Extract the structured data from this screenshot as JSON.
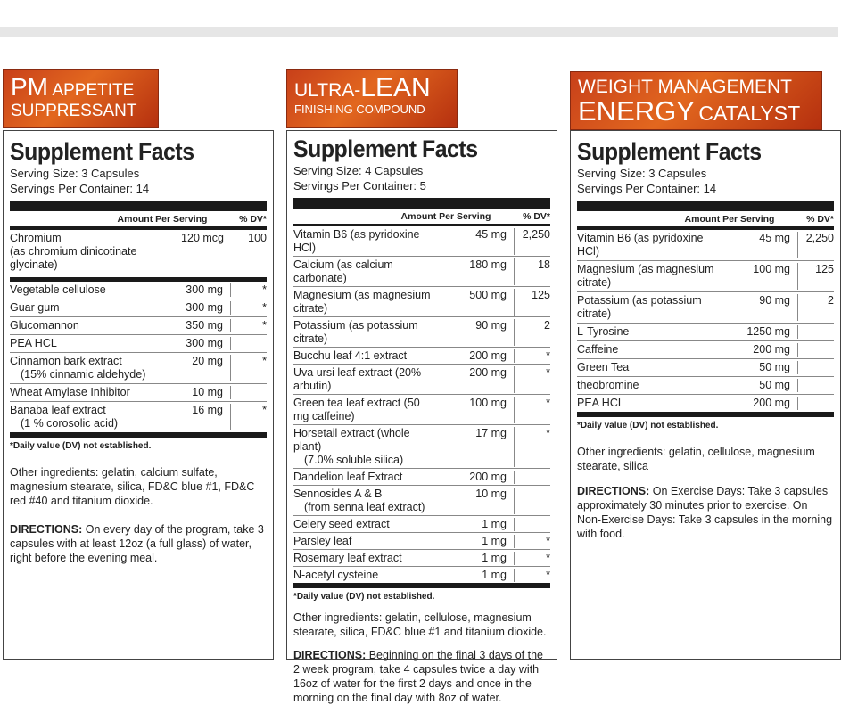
{
  "panels": [
    {
      "banner_line1_big": "PM",
      "banner_line1_small": "APPETITE",
      "banner_line2": "SUPPRESSANT",
      "title": "Supplement Facts",
      "serving_size": "Serving Size: 3 Capsules",
      "servings_per_container": "Servings Per Container: 14",
      "col_amount": "Amount Per Serving",
      "col_dv": "% DV*",
      "rows": [
        {
          "name": "Chromium",
          "sub": "(as chromium dinicotinate glycinate)",
          "amount": "120 mcg",
          "dv": "100"
        },
        {
          "name": "Vegetable cellulose",
          "sub": "",
          "amount": "300 mg",
          "dv": "*"
        },
        {
          "name": "Guar gum",
          "sub": "",
          "amount": "300 mg",
          "dv": "*"
        },
        {
          "name": "Glucomannon",
          "sub": "",
          "amount": "350 mg",
          "dv": "*"
        },
        {
          "name": "PEA HCL",
          "sub": "",
          "amount": "300 mg",
          "dv": ""
        },
        {
          "name": "Cinnamon bark extract",
          "sub": "(15% cinnamic aldehyde)",
          "amount": "20 mg",
          "dv": "*"
        },
        {
          "name": "Wheat Amylase Inhibitor",
          "sub": "",
          "amount": "10 mg",
          "dv": ""
        },
        {
          "name": "Banaba leaf extract",
          "sub": "(1 % corosolic acid)",
          "amount": "16 mg",
          "dv": "*"
        }
      ],
      "footnote": "*Daily value (DV) not established.",
      "other": "Other ingredients: gelatin, calcium sulfate, magnesium stearate, silica, FD&C blue #1, FD&C red #40 and titanium dioxide.",
      "directions_label": "DIRECTIONS:",
      "directions": " On every day of the program, take 3 capsules with at least 12oz (a full glass) of water, right before the evening meal."
    },
    {
      "banner_line1_small": "ULTRA-",
      "banner_line1_big": "LEAN",
      "banner_line2": "FINISHING COMPOUND",
      "title": "Supplement Facts",
      "serving_size": "Serving Size: 4 Capsules",
      "servings_per_container": "Servings Per Container: 5",
      "col_amount": "Amount Per Serving",
      "col_dv": "% DV*",
      "rows": [
        {
          "name": "Vitamin B6 (as pyridoxine HCl)",
          "sub": "",
          "amount": "45 mg",
          "dv": "2,250"
        },
        {
          "name": "Calcium (as calcium carbonate)",
          "sub": "",
          "amount": "180 mg",
          "dv": "18"
        },
        {
          "name": "Magnesium (as magnesium citrate)",
          "sub": "",
          "amount": "500 mg",
          "dv": "125"
        },
        {
          "name": "Potassium (as potassium citrate)",
          "sub": "",
          "amount": "90 mg",
          "dv": "2"
        },
        {
          "name": "Bucchu leaf 4:1 extract",
          "sub": "",
          "amount": "200 mg",
          "dv": "*"
        },
        {
          "name": "Uva ursi leaf extract (20% arbutin)",
          "sub": "",
          "amount": "200 mg",
          "dv": "*"
        },
        {
          "name": "Green tea leaf extract (50 mg caffeine)",
          "sub": "",
          "amount": "100 mg",
          "dv": "*"
        },
        {
          "name": "Horsetail extract (whole plant)",
          "sub": "(7.0% soluble silica)",
          "amount": "17 mg",
          "dv": "*"
        },
        {
          "name": "Dandelion leaf Extract",
          "sub": "",
          "amount": "200 mg",
          "dv": ""
        },
        {
          "name": "Sennosides A & B",
          "sub": "(from senna leaf extract)",
          "amount": "10 mg",
          "dv": ""
        },
        {
          "name": "Celery seed extract",
          "sub": "",
          "amount": "1 mg",
          "dv": ""
        },
        {
          "name": "Parsley leaf",
          "sub": "",
          "amount": "1 mg",
          "dv": "*"
        },
        {
          "name": "Rosemary leaf extract",
          "sub": "",
          "amount": "1 mg",
          "dv": "*"
        },
        {
          "name": "N-acetyl cysteine",
          "sub": "",
          "amount": "1 mg",
          "dv": "*"
        }
      ],
      "footnote": "*Daily value (DV) not established.",
      "other": "Other ingredients: gelatin, cellulose, magnesium stearate, silica, FD&C blue #1 and titanium dioxide.",
      "directions_label": "DIRECTIONS:",
      "directions": " Beginning on the final 3 days of the 2 week program, take 4 capsules twice a day with 16oz of water for the first 2 days and once in the morning on the final day with 8oz of water."
    },
    {
      "banner_line1_small": "WEIGHT MANAGEMENT",
      "banner_line2_big": "ENERGY",
      "banner_line2_small": "CATALYST",
      "title": "Supplement Facts",
      "serving_size": "Serving Size: 3 Capsules",
      "servings_per_container": "Servings Per Container: 14",
      "col_amount": "Amount Per Serving",
      "col_dv": "% DV*",
      "rows": [
        {
          "name": "Vitamin B6 (as pyridoxine HCl)",
          "sub": "",
          "amount": "45 mg",
          "dv": "2,250"
        },
        {
          "name": "Magnesium (as magnesium citrate)",
          "sub": "",
          "amount": "100 mg",
          "dv": "125"
        },
        {
          "name": "Potassium (as potassium citrate)",
          "sub": "",
          "amount": "90 mg",
          "dv": "2"
        },
        {
          "name": "L-Tyrosine",
          "sub": "",
          "amount": "1250 mg",
          "dv": ""
        },
        {
          "name": "Caffeine",
          "sub": "",
          "amount": "200 mg",
          "dv": ""
        },
        {
          "name": "Green Tea",
          "sub": "",
          "amount": "50 mg",
          "dv": ""
        },
        {
          "name": "theobromine",
          "sub": "",
          "amount": "50 mg",
          "dv": ""
        },
        {
          "name": "PEA HCL",
          "sub": "",
          "amount": "200 mg",
          "dv": ""
        }
      ],
      "footnote": "*Daily value (DV) not established.",
      "other": "Other ingredients: gelatin, cellulose, magnesium stearate, silica",
      "directions_label": "DIRECTIONS:",
      "directions": " On Exercise Days: Take 3 capsules approximately 30 minutes prior to exercise. On Non-Exercise Days: Take 3 capsules in the morning with food."
    }
  ]
}
